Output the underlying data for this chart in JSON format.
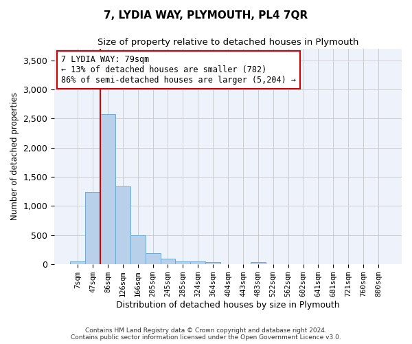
{
  "title": "7, LYDIA WAY, PLYMOUTH, PL4 7QR",
  "subtitle": "Size of property relative to detached houses in Plymouth",
  "xlabel": "Distribution of detached houses by size in Plymouth",
  "ylabel": "Number of detached properties",
  "bar_color": "#b8d0ea",
  "bar_edge_color": "#6aaad4",
  "categories": [
    "7sqm",
    "47sqm",
    "86sqm",
    "126sqm",
    "166sqm",
    "205sqm",
    "245sqm",
    "285sqm",
    "324sqm",
    "364sqm",
    "404sqm",
    "443sqm",
    "483sqm",
    "522sqm",
    "562sqm",
    "602sqm",
    "641sqm",
    "681sqm",
    "721sqm",
    "760sqm",
    "800sqm"
  ],
  "values": [
    50,
    1240,
    2570,
    1340,
    500,
    195,
    100,
    50,
    45,
    35,
    0,
    0,
    40,
    0,
    0,
    0,
    0,
    0,
    0,
    0,
    0
  ],
  "ylim": [
    0,
    3700
  ],
  "yticks": [
    0,
    500,
    1000,
    1500,
    2000,
    2500,
    3000,
    3500
  ],
  "vline_color": "#cc0000",
  "annotation_text": "7 LYDIA WAY: 79sqm\n← 13% of detached houses are smaller (782)\n86% of semi-detached houses are larger (5,204) →",
  "annotation_box_color": "#ffffff",
  "annotation_box_edge": "#cc0000",
  "footer_line1": "Contains HM Land Registry data © Crown copyright and database right 2024.",
  "footer_line2": "Contains public sector information licensed under the Open Government Licence v3.0.",
  "bg_color": "#eef2fa",
  "grid_color": "#cccccc"
}
